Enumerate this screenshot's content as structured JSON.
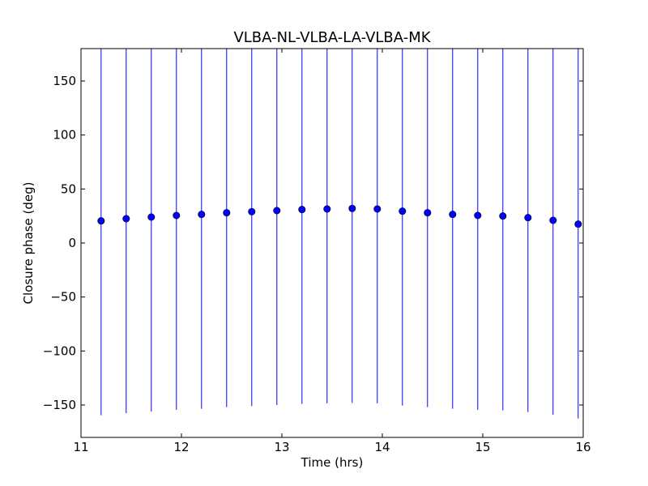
{
  "chart_data": {
    "type": "scatter",
    "title": "VLBA-NL-VLBA-LA-VLBA-MK",
    "xlabel": "Time (hrs)",
    "ylabel": "Closure phase (deg)",
    "xlim": [
      11,
      16
    ],
    "ylim": [
      -180,
      180
    ],
    "xticks": [
      11,
      12,
      13,
      14,
      15,
      16
    ],
    "yticks": [
      -150,
      -100,
      -50,
      0,
      50,
      100,
      150
    ],
    "xtick_labels": [
      "11",
      "12",
      "13",
      "14",
      "15",
      "16"
    ],
    "ytick_labels": [
      "−150",
      "−100",
      "−50",
      "0",
      "50",
      "100",
      "150"
    ],
    "grid": false,
    "marker_color": "#0000ff",
    "errorbar_color": "#0000ff",
    "series": [
      {
        "x": [
          11.2,
          11.45,
          11.7,
          11.95,
          12.2,
          12.45,
          12.7,
          12.95,
          13.2,
          13.45,
          13.7,
          13.95,
          14.2,
          14.45,
          14.7,
          14.95,
          15.2,
          15.45,
          15.7,
          15.95
        ],
        "y": [
          20.5,
          22.5,
          24,
          25.5,
          26.5,
          28,
          29,
          30,
          31,
          31.5,
          32,
          31.5,
          29.5,
          28,
          26.5,
          25.5,
          25,
          23.5,
          21,
          17.5
        ],
        "error": [
          180,
          180,
          180,
          180,
          180,
          180,
          180,
          180,
          180,
          180,
          180,
          180,
          180,
          180,
          180,
          180,
          180,
          180,
          180,
          180
        ]
      }
    ]
  }
}
